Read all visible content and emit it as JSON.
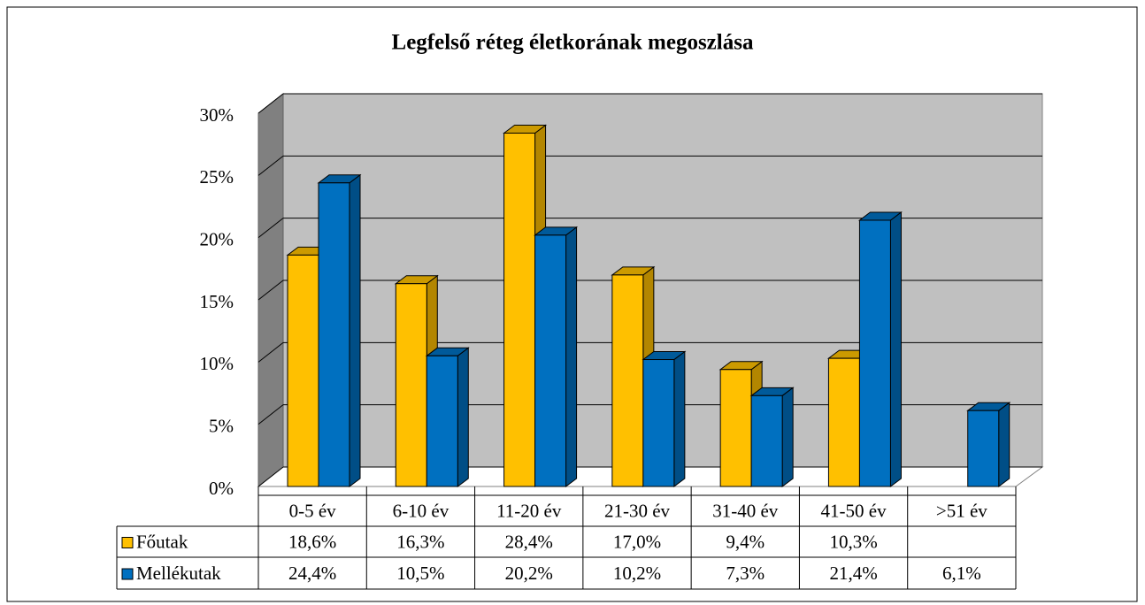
{
  "chart_data": {
    "type": "bar3d",
    "title": "Legfelső réteg életkorának megoszlása",
    "categories": [
      "0-5 év",
      "6-10 év",
      "11-20 év",
      "21-30 év",
      "31-40 év",
      "41-50 év",
      ">51 év"
    ],
    "series": [
      {
        "name": "Főutak",
        "color": "#ffc000",
        "values": [
          18.6,
          16.3,
          28.4,
          17.0,
          9.4,
          10.3,
          null
        ],
        "value_labels": [
          "18,6%",
          "16,3%",
          "28,4%",
          "17,0%",
          "9,4%",
          "10,3%",
          null
        ]
      },
      {
        "name": "Mellékutak",
        "color": "#0070c0",
        "values": [
          24.4,
          10.5,
          20.2,
          10.2,
          7.3,
          21.4,
          6.1
        ],
        "value_labels": [
          "24,4%",
          "10,5%",
          "20,2%",
          "10,2%",
          "7,3%",
          "21,4%",
          "6,1%"
        ]
      }
    ],
    "ylim": [
      0,
      30
    ],
    "yticks": [
      {
        "value": 0,
        "label": "0%"
      },
      {
        "value": 5,
        "label": "5%"
      },
      {
        "value": 10,
        "label": "10%"
      },
      {
        "value": 15,
        "label": "15%"
      },
      {
        "value": 20,
        "label": "20%"
      },
      {
        "value": 25,
        "label": "25%"
      },
      {
        "value": 30,
        "label": "30%"
      }
    ],
    "grid": true,
    "legend": "table"
  }
}
